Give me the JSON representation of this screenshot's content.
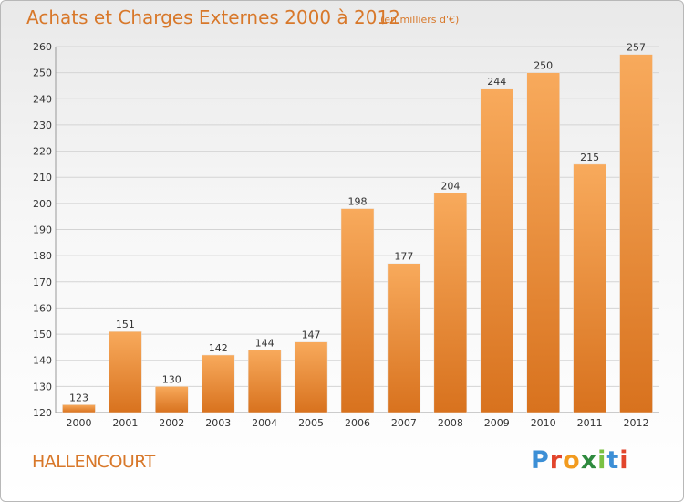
{
  "header": {
    "title": "Achats et Charges Externes 2000 à 2012",
    "unit": "(en milliers d'€)"
  },
  "footer": {
    "commune": "HALLENCOURT",
    "logo_letters": [
      "P",
      "r",
      "o",
      "x",
      "i",
      "t",
      "i"
    ]
  },
  "colors": {
    "accent": "#d8782a",
    "bar_light": "#f7a85a",
    "bar_dark": "#d9731f",
    "grid": "#d4d4d4"
  },
  "chart_data": {
    "type": "bar",
    "title": "Achats et Charges Externes 2000 à 2012",
    "subtitle": "(en milliers d'€)",
    "xlabel": "",
    "ylabel": "",
    "categories": [
      "2000",
      "2001",
      "2002",
      "2003",
      "2004",
      "2005",
      "2006",
      "2007",
      "2008",
      "2009",
      "2010",
      "2011",
      "2012"
    ],
    "values": [
      123,
      151,
      130,
      142,
      144,
      147,
      198,
      177,
      204,
      244,
      250,
      215,
      257
    ],
    "ylim": [
      120,
      260
    ],
    "yticks": [
      120,
      130,
      140,
      150,
      160,
      170,
      180,
      190,
      200,
      210,
      220,
      230,
      240,
      250,
      260
    ],
    "grid": true,
    "data_labels": true
  }
}
